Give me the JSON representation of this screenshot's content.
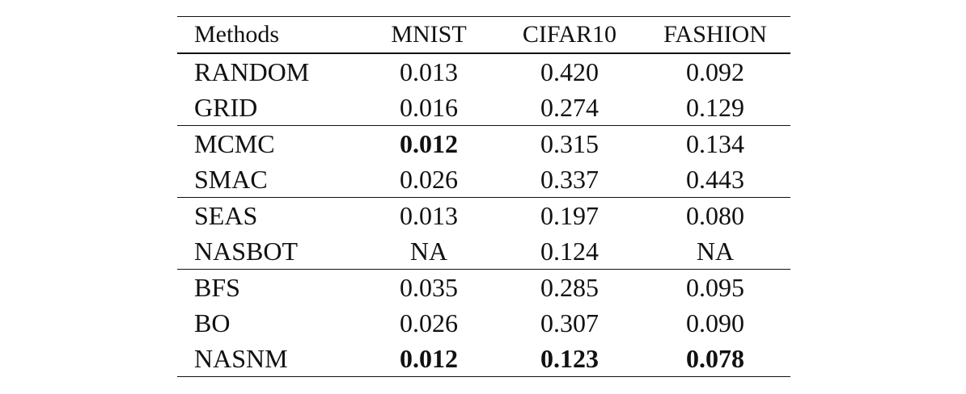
{
  "table": {
    "columns": [
      "Methods",
      "MNIST",
      "CIFAR10",
      "FASHION"
    ],
    "rows": [
      {
        "method": "RANDOM",
        "mnist": "0.013",
        "cifar10": "0.420",
        "fashion": "0.092"
      },
      {
        "method": "GRID",
        "mnist": "0.016",
        "cifar10": "0.274",
        "fashion": "0.129"
      },
      {
        "method": "MCMC",
        "mnist": "0.012",
        "cifar10": "0.315",
        "fashion": "0.134"
      },
      {
        "method": "SMAC",
        "mnist": "0.026",
        "cifar10": "0.337",
        "fashion": "0.443"
      },
      {
        "method": "SEAS",
        "mnist": "0.013",
        "cifar10": "0.197",
        "fashion": "0.080"
      },
      {
        "method": "NASBOT",
        "mnist": "NA",
        "cifar10": "0.124",
        "fashion": "NA"
      },
      {
        "method": "BFS",
        "mnist": "0.035",
        "cifar10": "0.285",
        "fashion": "0.095"
      },
      {
        "method": "BO",
        "mnist": "0.026",
        "cifar10": "0.307",
        "fashion": "0.090"
      },
      {
        "method": "NASNM",
        "mnist": "0.012",
        "cifar10": "0.123",
        "fashion": "0.078"
      }
    ],
    "bold_cells": [
      {
        "row": 2,
        "column": "mnist"
      },
      {
        "row": 8,
        "column": "mnist"
      },
      {
        "row": 8,
        "column": "cifar10"
      },
      {
        "row": 8,
        "column": "fashion"
      }
    ]
  }
}
